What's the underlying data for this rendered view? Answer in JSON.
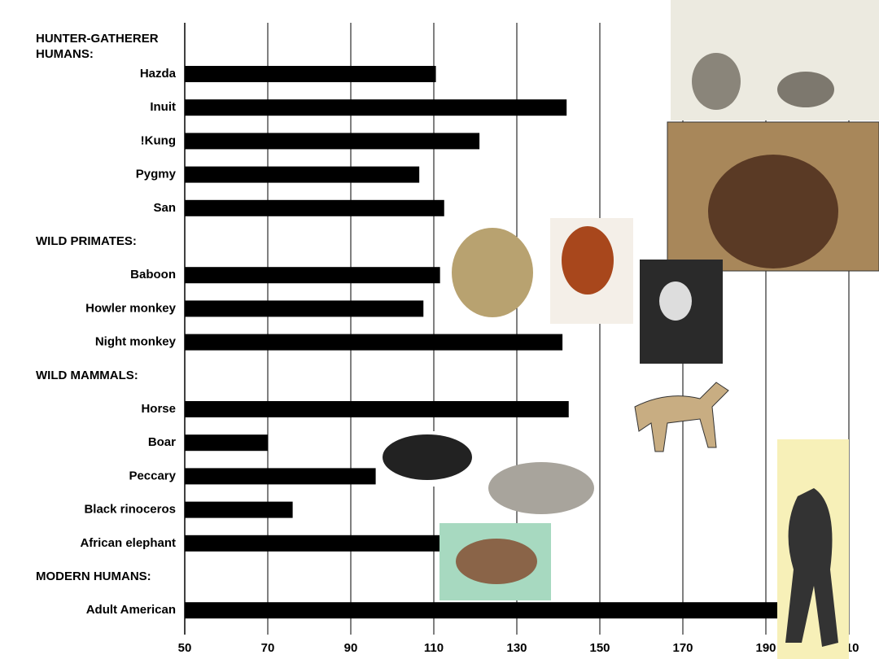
{
  "chart_data": {
    "type": "bar",
    "orientation": "horizontal",
    "color": "#000000",
    "xlim": [
      50,
      210
    ],
    "xticks": [
      50,
      70,
      90,
      110,
      130,
      150,
      170,
      190,
      210
    ],
    "grid": true,
    "groups": [
      {
        "name": "HUNTER-GATHERER HUMANS:",
        "categories": [
          "Hazda",
          "Inuit",
          "!Kung",
          "Pygmy",
          "San"
        ],
        "values": [
          110.5,
          142,
          121,
          106.5,
          112.5
        ]
      },
      {
        "name": "WILD PRIMATES:",
        "categories": [
          "Baboon",
          "Howler monkey",
          "Night monkey"
        ],
        "values": [
          111.5,
          107.5,
          141
        ]
      },
      {
        "name": "WILD MAMMALS:",
        "categories": [
          "Horse",
          "Boar",
          "Peccary",
          "Black rinoceros",
          "African elephant"
        ],
        "values": [
          142.5,
          70,
          96,
          76,
          111.5
        ]
      },
      {
        "name": "MODERN HUMANS:",
        "categories": [
          "Adult American"
        ],
        "values": [
          200
        ]
      }
    ]
  }
}
